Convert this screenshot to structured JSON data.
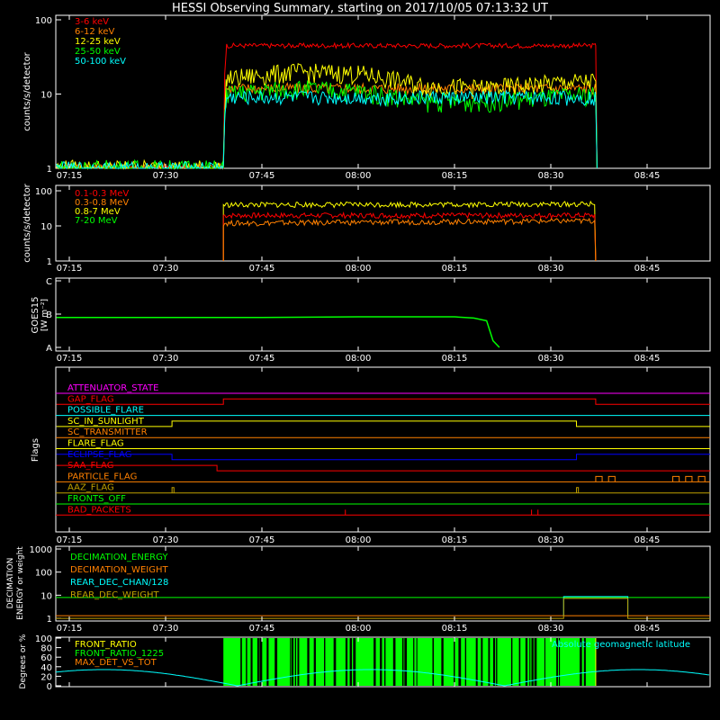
{
  "title": "HESSI Observing Summary, starting on 2017/10/05 07:13:32 UT",
  "time_ticks": [
    "07:15",
    "07:30",
    "07:45",
    "08:00",
    "08:15",
    "08:30",
    "08:45"
  ],
  "colors": {
    "red": "#ff0000",
    "orange": "#ff8000",
    "yellow": "#ffff00",
    "green": "#00ff00",
    "cyan": "#00ffff",
    "magenta": "#ff00ff",
    "blue": "#0000ff",
    "olive": "#c0a000",
    "white": "#ffffff"
  },
  "chart_data": [
    {
      "id": "low_energy",
      "type": "line",
      "ylabel": "counts/s/detector",
      "y_scale": "log",
      "ylim": [
        1,
        100
      ],
      "y_ticks": [
        "1",
        "10",
        "100"
      ],
      "x_range": [
        "07:13:32",
        "08:55"
      ],
      "series": [
        {
          "name": "3-6 keV",
          "color": "#ff0000",
          "x": [
            "07:13",
            "07:39",
            "07:39.5",
            "08:37",
            "08:37.2"
          ],
          "y": [
            1,
            1,
            45,
            45,
            1
          ]
        },
        {
          "name": "6-12 keV",
          "color": "#ff8000",
          "x": [
            "07:13",
            "07:39",
            "07:39.5",
            "08:37",
            "08:37.2"
          ],
          "y": [
            1,
            1,
            12,
            12,
            1
          ]
        },
        {
          "name": "12-25 keV",
          "color": "#ffff00",
          "x": [
            "07:13",
            "07:39",
            "07:39.5",
            "07:50",
            "08:00",
            "08:10",
            "08:20",
            "08:30",
            "08:37",
            "08:37.2"
          ],
          "y": [
            1,
            1,
            16,
            20,
            19,
            13,
            12,
            14,
            15,
            1
          ]
        },
        {
          "name": "25-50 keV",
          "color": "#00ff00",
          "x": [
            "07:13",
            "07:39",
            "07:39.5",
            "07:50",
            "08:00",
            "08:10",
            "08:20",
            "08:30",
            "08:37",
            "08:37.2"
          ],
          "y": [
            1,
            1,
            10,
            12,
            11,
            8,
            8,
            9,
            10,
            1
          ]
        },
        {
          "name": "50-100 keV",
          "color": "#00ffff",
          "x": [
            "07:13",
            "07:39",
            "07:39.5",
            "08:37",
            "08:37.2"
          ],
          "y": [
            1,
            1,
            9,
            9,
            1
          ]
        }
      ]
    },
    {
      "id": "high_energy",
      "type": "line",
      "ylabel": "counts/s/detector",
      "y_scale": "log",
      "ylim": [
        1,
        100
      ],
      "y_ticks": [
        "1",
        "10",
        "100"
      ],
      "series": [
        {
          "name": "0.1-0.3 MeV",
          "color": "#ff0000",
          "x": [
            "07:39",
            "08:37"
          ],
          "y": [
            20,
            20
          ]
        },
        {
          "name": "0.3-0.8 MeV",
          "color": "#ff8000",
          "x": [
            "07:39",
            "08:37"
          ],
          "y": [
            12,
            14
          ]
        },
        {
          "name": "0.8-7 MeV",
          "color": "#ffff00",
          "x": [
            "07:39",
            "08:37"
          ],
          "y": [
            40,
            42
          ]
        },
        {
          "name": "7-20 MeV",
          "color": "#00ff00",
          "x": [],
          "y": []
        }
      ]
    },
    {
      "id": "goes",
      "type": "line",
      "ylabel": "GOES15 [W m⁻²]",
      "y_ticks": [
        "A",
        "B",
        "C"
      ],
      "series": [
        {
          "name": "GOES15",
          "color": "#00ff00",
          "x": [
            "07:13",
            "07:30",
            "07:45",
            "08:00",
            "08:15",
            "08:18",
            "08:20",
            "08:21",
            "08:22"
          ],
          "y": [
            1.9,
            1.9,
            1.9,
            1.92,
            1.92,
            1.88,
            1.8,
            1.2,
            1.0
          ]
        }
      ]
    },
    {
      "id": "flags",
      "type": "line",
      "ylabel": "Flags",
      "series": [
        {
          "name": "ATTENUATOR_STATE",
          "color": "#ff00ff"
        },
        {
          "name": "GAP_FLAG",
          "color": "#ff0000"
        },
        {
          "name": "POSSIBLE_FLARE",
          "color": "#00ffff"
        },
        {
          "name": "SC_IN_SUNLIGHT",
          "color": "#ffff00"
        },
        {
          "name": "SC_TRANSMITTER",
          "color": "#ff8000"
        },
        {
          "name": "FLARE_FLAG",
          "color": "#ffff00"
        },
        {
          "name": "ECLIPSE_FLAG",
          "color": "#0000ff"
        },
        {
          "name": "SAA_FLAG",
          "color": "#ff0000"
        },
        {
          "name": "PARTICLE_FLAG",
          "color": "#ff8000"
        },
        {
          "name": "AAZ_FLAG",
          "color": "#c0a000"
        },
        {
          "name": "FRONTS_OFF",
          "color": "#00ff00"
        },
        {
          "name": "BAD_PACKETS",
          "color": "#ff0000"
        }
      ]
    },
    {
      "id": "decimation",
      "type": "line",
      "ylabel": "DECIMATION ENERGY or weight",
      "y_scale": "log",
      "ylim": [
        1,
        1000
      ],
      "y_ticks": [
        "1",
        "10",
        "100",
        "1000"
      ],
      "series": [
        {
          "name": "DECIMATION_ENERGY",
          "color": "#00ff00"
        },
        {
          "name": "DECIMATION_WEIGHT",
          "color": "#ff8000"
        },
        {
          "name": "REAR_DEC_CHAN/128",
          "color": "#00ffff"
        },
        {
          "name": "REAR_DEC_WEIGHT",
          "color": "#c0a000"
        }
      ]
    },
    {
      "id": "ratios",
      "type": "line",
      "ylabel": "Degrees or %",
      "ylim": [
        0,
        100
      ],
      "y_ticks": [
        "0",
        "20",
        "40",
        "60",
        "80",
        "100"
      ],
      "annotation": "Absolute geomagnetic latitude",
      "series": [
        {
          "name": "FRONT_RATIO",
          "color": "#ffff00"
        },
        {
          "name": "FRONT_RATIO_1225",
          "color": "#00ff00"
        },
        {
          "name": "MAX_DET_VS_TOT",
          "color": "#ff8000"
        }
      ]
    }
  ]
}
